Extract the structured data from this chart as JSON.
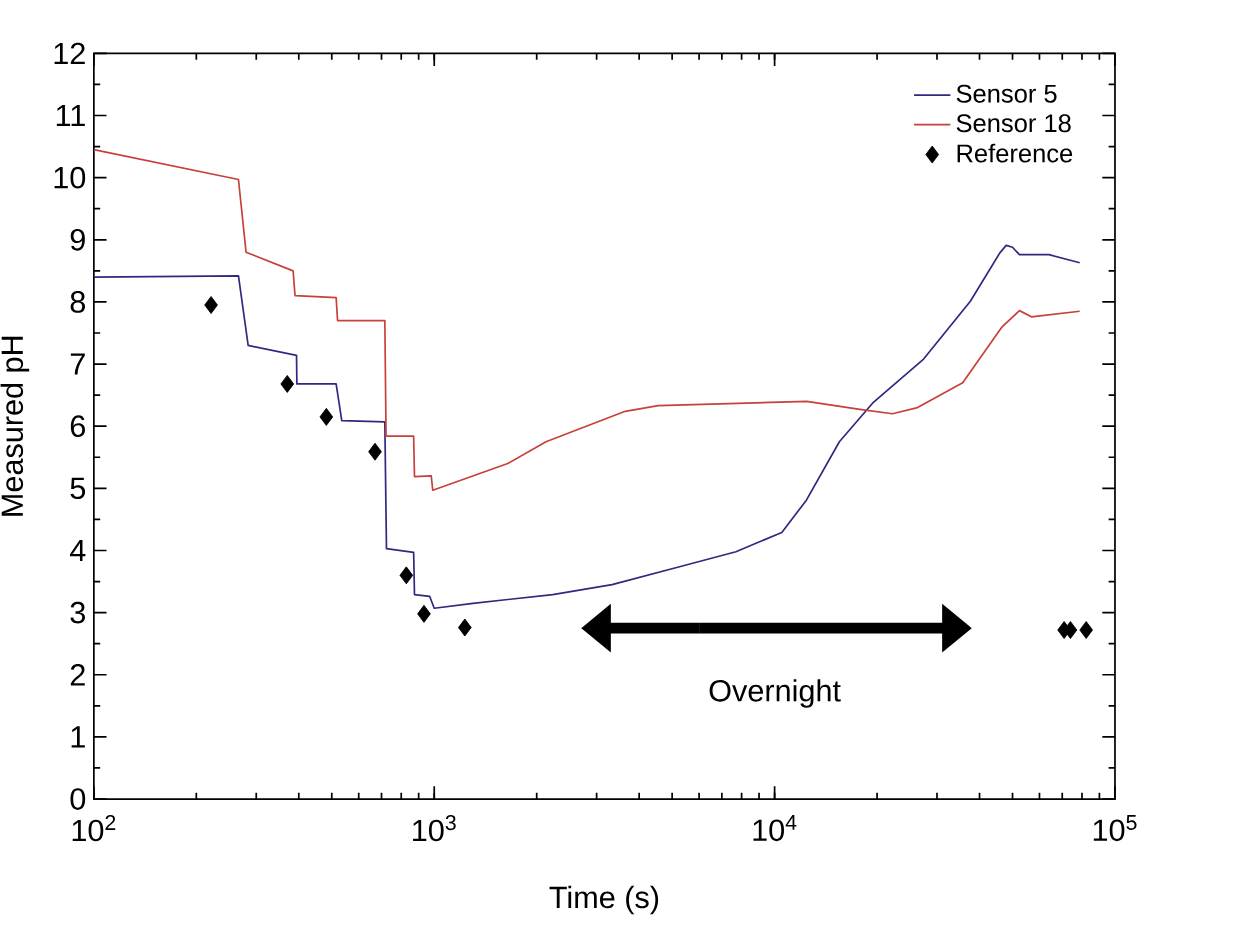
{
  "chart_data": {
    "type": "line",
    "xlabel": "Time (s)",
    "ylabel": "Measured pH",
    "log": "x",
    "xlim": [
      100,
      100000
    ],
    "ylim": [
      0,
      12
    ],
    "xticks": [
      {
        "value": 100,
        "label": "10$^{2}$"
      },
      {
        "value": 1000,
        "label": "10$^{3}$"
      },
      {
        "value": 10000,
        "label": "10$^{4}$"
      },
      {
        "value": 100000,
        "label": "10$^{5}$"
      }
    ],
    "yticks": [
      0,
      1,
      2,
      3,
      4,
      5,
      6,
      7,
      8,
      9,
      10,
      11,
      12
    ],
    "legend": "top right",
    "grid": false,
    "annotations": [
      "Overnight"
    ],
    "series": [
      {
        "name": "Sensor 5",
        "color": "#2e2a80",
        "marker": "none",
        "x": [
          100,
          266,
          284,
          394,
          395,
          515,
          535,
          716,
          724,
          870,
          875,
          970,
          1000,
          1300,
          2230,
          3330,
          5190,
          7700,
          10500,
          12400,
          15500,
          19400,
          27400,
          37600,
          45900,
          47900,
          50000,
          52400,
          64000,
          78800
        ],
        "values": [
          8.4,
          8.42,
          7.3,
          7.14,
          6.68,
          6.68,
          6.09,
          6.07,
          4.03,
          3.97,
          3.29,
          3.26,
          3.07,
          3.15,
          3.29,
          3.45,
          3.73,
          3.98,
          4.29,
          4.81,
          5.75,
          6.37,
          7.08,
          8.01,
          8.79,
          8.91,
          8.88,
          8.76,
          8.76,
          8.63
        ]
      },
      {
        "name": "Sensor 18",
        "color": "#c8403a",
        "marker": "none",
        "x": [
          100,
          266,
          280,
          385,
          390,
          515,
          520,
          716,
          722,
          870,
          875,
          980,
          990,
          1645,
          2130,
          3640,
          4550,
          12420,
          17800,
          22200,
          26300,
          35700,
          46600,
          52400,
          56800,
          78800
        ],
        "values": [
          10.45,
          9.97,
          8.8,
          8.5,
          8.1,
          8.07,
          7.7,
          7.7,
          5.84,
          5.84,
          5.19,
          5.2,
          4.97,
          5.4,
          5.75,
          6.24,
          6.33,
          6.4,
          6.27,
          6.2,
          6.3,
          6.7,
          7.6,
          7.86,
          7.76,
          7.85
        ]
      },
      {
        "name": "Reference",
        "type": "scatter",
        "color": "#000000",
        "marker": "diamond",
        "x": [
          221,
          370,
          482,
          670,
          828,
          933,
          1230,
          70900,
          74000,
          82300
        ],
        "values": [
          7.95,
          6.68,
          6.15,
          5.59,
          3.6,
          2.98,
          2.76,
          2.72,
          2.72,
          2.72
        ]
      }
    ]
  }
}
